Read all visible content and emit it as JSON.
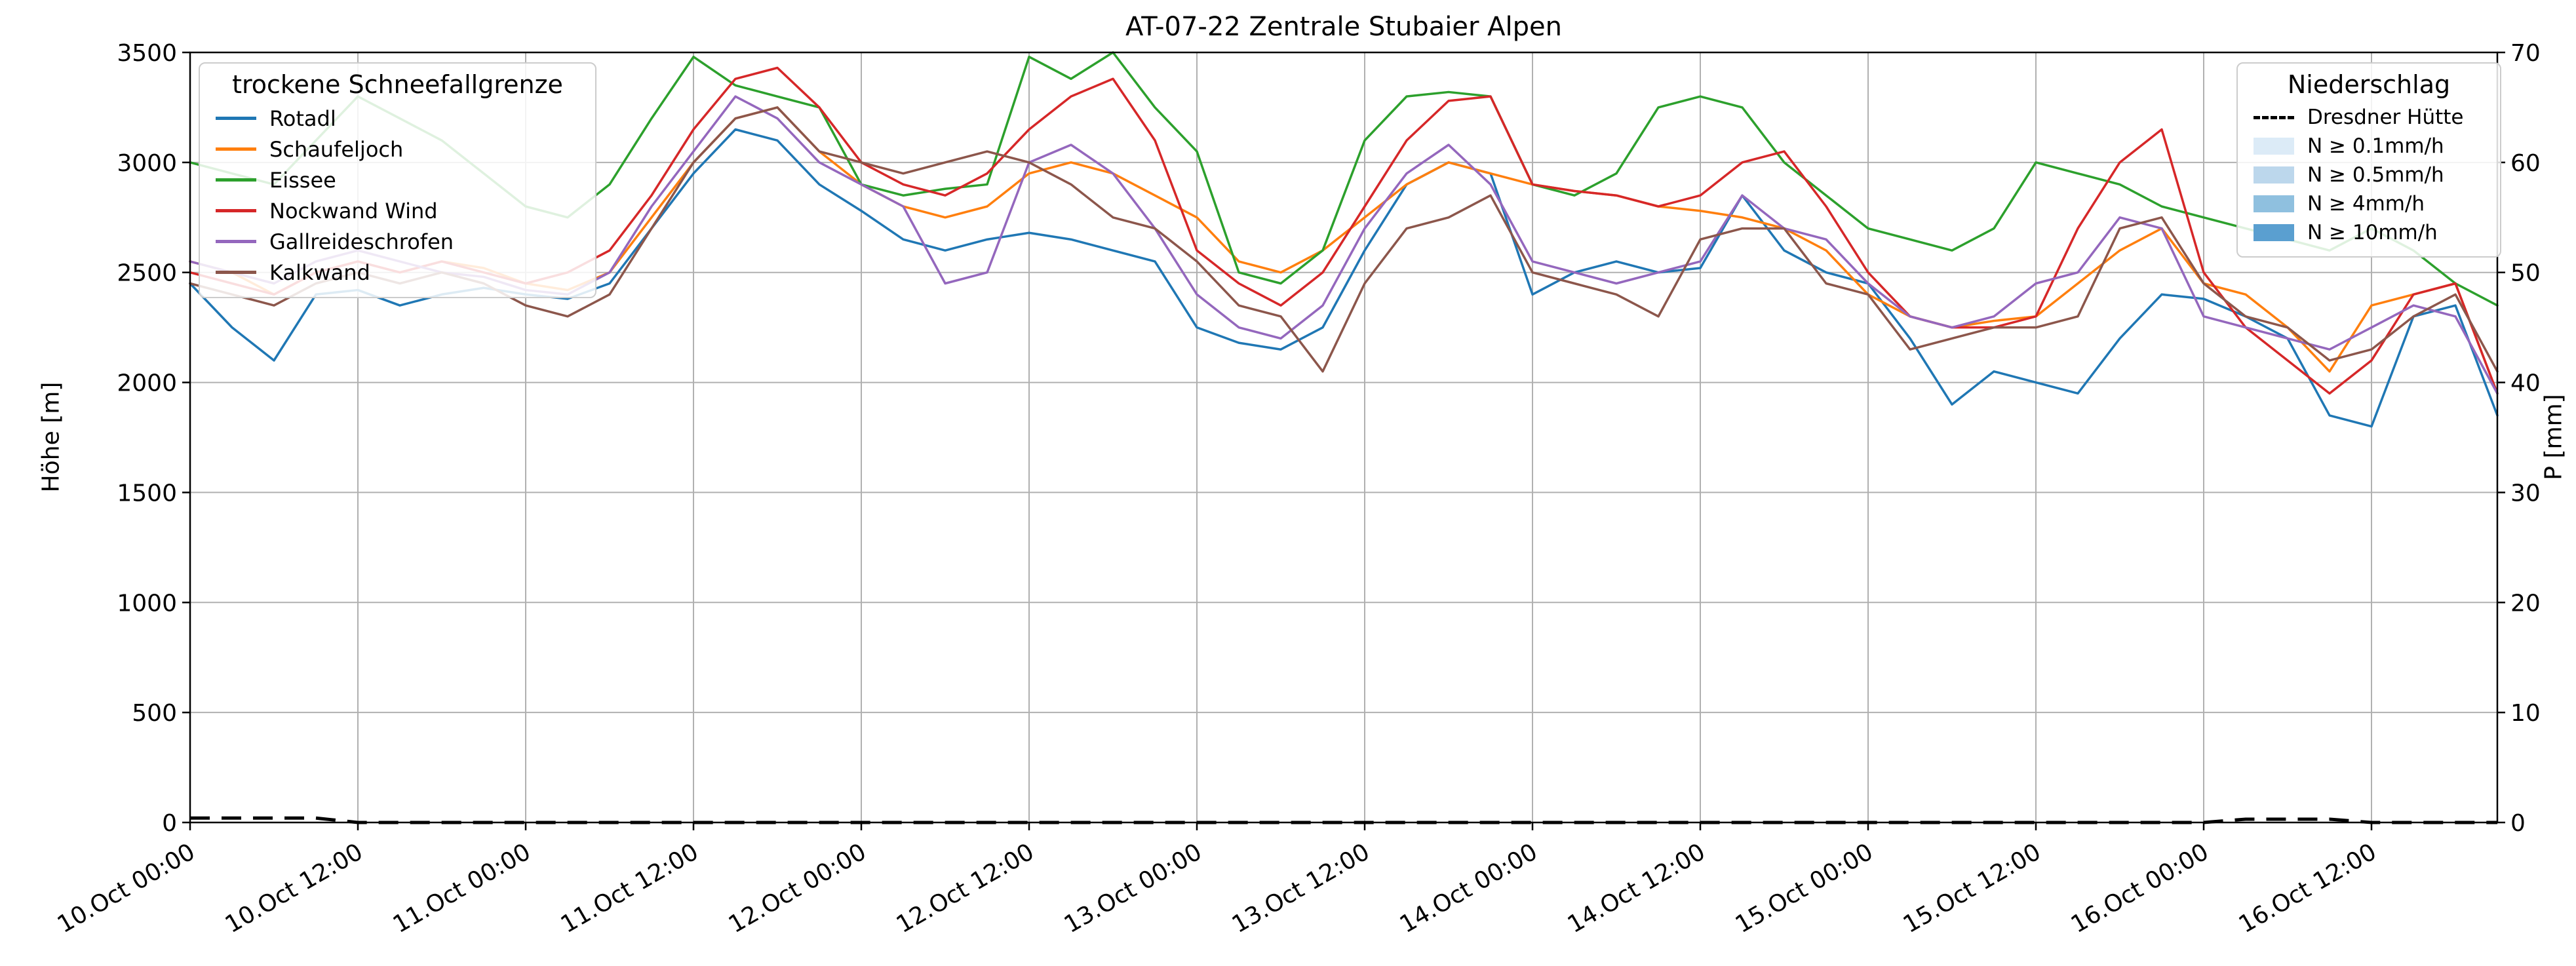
{
  "chart_data": {
    "type": "line",
    "title": "AT-07-22 Zentrale Stubaier Alpen",
    "ylabel_left": "Höhe [m]",
    "ylabel_right": "P [mm]",
    "ylim_left": [
      0,
      3500
    ],
    "yticks_left": [
      0,
      500,
      1000,
      1500,
      2000,
      2500,
      3000,
      3500
    ],
    "ylim_right": [
      0,
      70
    ],
    "yticks_right": [
      0,
      10,
      20,
      30,
      40,
      50,
      60,
      70
    ],
    "xlim_hours": [
      0,
      165
    ],
    "x_step_hours": 3,
    "grid": true,
    "xticks": [
      {
        "hour": 0,
        "label": "10.Oct 00:00"
      },
      {
        "hour": 12,
        "label": "10.Oct 12:00"
      },
      {
        "hour": 24,
        "label": "11.Oct 00:00"
      },
      {
        "hour": 36,
        "label": "11.Oct 12:00"
      },
      {
        "hour": 48,
        "label": "12.Oct 00:00"
      },
      {
        "hour": 60,
        "label": "12.Oct 12:00"
      },
      {
        "hour": 72,
        "label": "13.Oct 00:00"
      },
      {
        "hour": 84,
        "label": "13.Oct 12:00"
      },
      {
        "hour": 96,
        "label": "14.Oct 00:00"
      },
      {
        "hour": 108,
        "label": "14.Oct 12:00"
      },
      {
        "hour": 120,
        "label": "15.Oct 00:00"
      },
      {
        "hour": 132,
        "label": "15.Oct 12:00"
      },
      {
        "hour": 144,
        "label": "16.Oct 00:00"
      },
      {
        "hour": 156,
        "label": "16.Oct 12:00"
      }
    ],
    "series": [
      {
        "name": "Rotadl",
        "color": "#1f77b4",
        "axis": "left",
        "values": [
          2450,
          2250,
          2100,
          2400,
          2420,
          2350,
          2400,
          2430,
          2400,
          2380,
          2450,
          2700,
          2950,
          3150,
          3100,
          2900,
          2780,
          2650,
          2600,
          2650,
          2680,
          2650,
          2600,
          2550,
          2250,
          2180,
          2150,
          2250,
          2600,
          2900,
          3000,
          2950,
          2400,
          2500,
          2550,
          2500,
          2520,
          2850,
          2600,
          2500,
          2450,
          2200,
          1900,
          2050,
          2000,
          1950,
          2200,
          2400,
          2380,
          2300,
          2200,
          1850,
          1800,
          2300,
          2350,
          1850
        ]
      },
      {
        "name": "Schaufeljoch",
        "color": "#ff7f0e",
        "axis": "left",
        "values": [
          2550,
          2500,
          2400,
          2500,
          2550,
          2500,
          2550,
          2520,
          2450,
          2420,
          2500,
          2750,
          3000,
          3200,
          3250,
          3050,
          2900,
          2800,
          2750,
          2800,
          2950,
          3000,
          2950,
          2850,
          2750,
          2550,
          2500,
          2600,
          2750,
          2900,
          3000,
          2950,
          2900,
          2870,
          2850,
          2800,
          2780,
          2750,
          2700,
          2600,
          2400,
          2300,
          2250,
          2280,
          2300,
          2450,
          2600,
          2700,
          2450,
          2400,
          2250,
          2050,
          2350,
          2400,
          2450,
          1950
        ]
      },
      {
        "name": "Eissee",
        "color": "#2ca02c",
        "axis": "left",
        "values": [
          3000,
          2950,
          2900,
          3100,
          3300,
          3200,
          3100,
          2950,
          2800,
          2750,
          2900,
          3200,
          3480,
          3350,
          3300,
          3250,
          2900,
          2850,
          2880,
          2900,
          3480,
          3380,
          3500,
          3250,
          3050,
          2500,
          2450,
          2600,
          3100,
          3300,
          3320,
          3300,
          2900,
          2850,
          2950,
          3250,
          3300,
          3250,
          3000,
          2850,
          2700,
          2650,
          2600,
          2700,
          3000,
          2950,
          2900,
          2800,
          2750,
          2700,
          2650,
          2600,
          2700,
          2600,
          2450,
          2350
        ]
      },
      {
        "name": "Nockwand Wind",
        "color": "#d62728",
        "axis": "left",
        "values": [
          2500,
          2450,
          2400,
          2500,
          2550,
          2500,
          2550,
          2500,
          2450,
          2500,
          2600,
          2850,
          3150,
          3380,
          3430,
          3250,
          3000,
          2900,
          2850,
          2950,
          3150,
          3300,
          3380,
          3100,
          2600,
          2450,
          2350,
          2500,
          2800,
          3100,
          3280,
          3300,
          2900,
          2870,
          2850,
          2800,
          2850,
          3000,
          3050,
          2800,
          2500,
          2300,
          2250,
          2250,
          2300,
          2700,
          3000,
          3150,
          2500,
          2250,
          2100,
          1950,
          2100,
          2400,
          2450,
          1950
        ]
      },
      {
        "name": "Gallreideschrofen",
        "color": "#9467bd",
        "axis": "left",
        "values": [
          2550,
          2500,
          2450,
          2550,
          2600,
          2550,
          2500,
          2480,
          2420,
          2400,
          2500,
          2800,
          3050,
          3300,
          3200,
          3000,
          2900,
          2800,
          2450,
          2500,
          3000,
          3080,
          2950,
          2700,
          2400,
          2250,
          2200,
          2350,
          2700,
          2950,
          3080,
          2900,
          2550,
          2500,
          2450,
          2500,
          2550,
          2850,
          2700,
          2650,
          2450,
          2300,
          2250,
          2300,
          2450,
          2500,
          2750,
          2700,
          2300,
          2250,
          2200,
          2150,
          2250,
          2350,
          2300,
          1950
        ]
      },
      {
        "name": "Kalkwand",
        "color": "#8c564b",
        "axis": "left",
        "values": [
          2450,
          2400,
          2350,
          2450,
          2500,
          2450,
          2500,
          2450,
          2350,
          2300,
          2400,
          2700,
          3000,
          3200,
          3250,
          3050,
          3000,
          2950,
          3000,
          3050,
          3000,
          2900,
          2750,
          2700,
          2550,
          2350,
          2300,
          2050,
          2450,
          2700,
          2750,
          2850,
          2500,
          2450,
          2400,
          2300,
          2650,
          2700,
          2700,
          2450,
          2400,
          2150,
          2200,
          2250,
          2250,
          2300,
          2700,
          2750,
          2450,
          2300,
          2250,
          2100,
          2150,
          2300,
          2400,
          2050
        ]
      }
    ],
    "precip_line": {
      "name": "Dresdner Hütte",
      "color": "#000000",
      "dash": true,
      "axis": "right",
      "values": [
        0.4,
        0.4,
        0.4,
        0.4,
        0,
        0,
        0,
        0,
        0,
        0,
        0,
        0,
        0,
        0,
        0,
        0,
        0,
        0,
        0,
        0,
        0,
        0,
        0,
        0,
        0,
        0,
        0,
        0,
        0,
        0,
        0,
        0,
        0,
        0,
        0,
        0,
        0,
        0,
        0,
        0,
        0,
        0,
        0,
        0,
        0,
        0,
        0,
        0,
        0,
        0.3,
        0.3,
        0.3,
        0,
        0,
        0,
        0
      ]
    },
    "legend_snowline": {
      "title": "trockene Schneefallgrenze"
    },
    "legend_precip": {
      "title": "Niederschlag",
      "line_entry": "Dresdner Hütte",
      "bands": [
        {
          "label": "N ≥ 0.1mm/h",
          "color": "#dcebf7"
        },
        {
          "label": "N ≥ 0.5mm/h",
          "color": "#bcd7ec"
        },
        {
          "label": "N ≥ 4mm/h",
          "color": "#8fc0df"
        },
        {
          "label": "N ≥ 10mm/h",
          "color": "#5a9fd0"
        }
      ]
    },
    "style": {
      "grid_color": "#b0b0b0",
      "spine_color": "#000000",
      "background": "#ffffff"
    }
  }
}
